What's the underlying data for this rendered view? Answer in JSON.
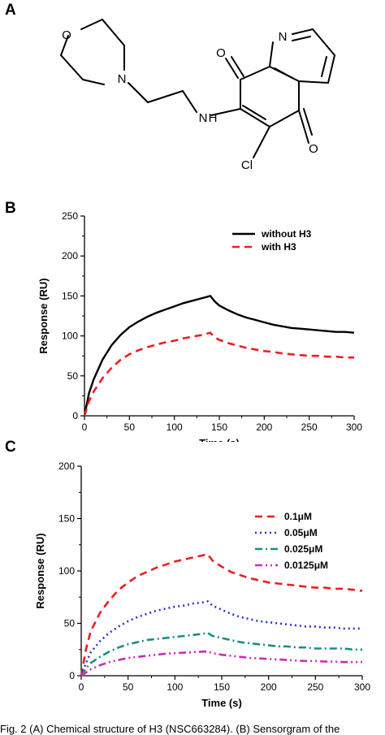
{
  "panels": {
    "a": "A",
    "b": "B",
    "c": "C"
  },
  "structure": {
    "atoms": {
      "O": "O",
      "N": "N",
      "NH": "N",
      "H": "H",
      "Cl": "Cl"
    }
  },
  "caption": "Fig. 2   (A) Chemical structure of H3 (NSC663284). (B) Sensorgram of the",
  "colors": {
    "black": "#000000",
    "red": "#e8211f",
    "blue": "#2a36c8",
    "teal": "#1a8f86",
    "magenta": "#cc2bb8"
  },
  "chart_data": [
    {
      "type": "line",
      "panel": "B",
      "xlabel": "Time (s)",
      "ylabel": "Response (RU)",
      "xlim": [
        0,
        300
      ],
      "ylim": [
        0,
        250
      ],
      "xticks": [
        0,
        50,
        100,
        150,
        200,
        250,
        300
      ],
      "yticks": [
        0,
        50,
        100,
        150,
        200,
        250
      ],
      "legend_position": "top-right",
      "series": [
        {
          "name": "without H3",
          "color": "#000000",
          "dash": "solid",
          "x": [
            0,
            5,
            10,
            20,
            30,
            40,
            50,
            60,
            70,
            80,
            90,
            100,
            110,
            120,
            130,
            140,
            145,
            150,
            160,
            170,
            180,
            190,
            200,
            210,
            220,
            230,
            240,
            250,
            260,
            270,
            280,
            290,
            300
          ],
          "y": [
            0,
            28,
            45,
            70,
            88,
            101,
            111,
            118,
            124,
            129,
            133,
            137,
            141,
            144,
            147,
            150,
            143,
            138,
            132,
            127,
            123,
            120,
            117,
            114,
            112,
            110,
            109,
            108,
            107,
            106,
            105,
            105,
            104
          ]
        },
        {
          "name": "with H3",
          "color": "#e8211f",
          "dash": "dash",
          "x": [
            0,
            5,
            10,
            20,
            30,
            40,
            50,
            60,
            70,
            80,
            90,
            100,
            110,
            120,
            130,
            140,
            145,
            150,
            160,
            170,
            180,
            190,
            200,
            210,
            220,
            230,
            240,
            250,
            260,
            270,
            280,
            290,
            300
          ],
          "y": [
            0,
            18,
            30,
            47,
            60,
            70,
            77,
            82,
            86,
            89,
            92,
            94,
            97,
            99,
            101,
            104,
            98,
            95,
            91,
            88,
            85,
            83,
            81,
            80,
            78,
            77,
            76,
            75,
            75,
            74,
            74,
            73,
            73
          ]
        }
      ]
    },
    {
      "type": "line",
      "panel": "C",
      "xlabel": "Time (s)",
      "ylabel": "Response (RU)",
      "xlim": [
        0,
        300
      ],
      "ylim": [
        0,
        200
      ],
      "xticks": [
        0,
        50,
        100,
        150,
        200,
        250,
        300
      ],
      "yticks": [
        0,
        50,
        100,
        150,
        200
      ],
      "legend_position": "top-right",
      "series": [
        {
          "name": "0.1μM",
          "color": "#e8211f",
          "dash": "dash",
          "x": [
            0,
            5,
            10,
            20,
            30,
            40,
            50,
            60,
            70,
            80,
            90,
            100,
            110,
            120,
            130,
            135,
            140,
            150,
            160,
            170,
            180,
            190,
            200,
            210,
            220,
            230,
            240,
            250,
            260,
            270,
            280,
            290,
            300
          ],
          "y": [
            0,
            25,
            42,
            60,
            72,
            82,
            89,
            95,
            99,
            103,
            106,
            109,
            111,
            113,
            115,
            116,
            110,
            104,
            99,
            96,
            93,
            91,
            89,
            88,
            87,
            86,
            85,
            84,
            84,
            83,
            83,
            82,
            81
          ]
        },
        {
          "name": "0.05μM",
          "color": "#2a36c8",
          "dash": "dot",
          "x": [
            0,
            5,
            10,
            20,
            30,
            40,
            50,
            60,
            70,
            80,
            90,
            100,
            110,
            120,
            130,
            135,
            140,
            150,
            160,
            170,
            180,
            190,
            200,
            210,
            220,
            230,
            240,
            250,
            260,
            270,
            280,
            290,
            300
          ],
          "y": [
            0,
            12,
            22,
            33,
            41,
            47,
            52,
            56,
            59,
            62,
            64,
            66,
            67,
            69,
            70,
            71,
            67,
            63,
            59,
            56,
            54,
            52,
            51,
            50,
            49,
            48,
            47,
            47,
            46,
            46,
            45,
            45,
            45
          ]
        },
        {
          "name": "0.025μM",
          "color": "#1a8f86",
          "dash": "dashdot",
          "x": [
            0,
            5,
            10,
            20,
            30,
            40,
            50,
            60,
            70,
            80,
            90,
            100,
            110,
            120,
            130,
            135,
            140,
            150,
            160,
            170,
            180,
            190,
            200,
            210,
            220,
            230,
            240,
            250,
            260,
            270,
            280,
            290,
            300
          ],
          "y": [
            0,
            7,
            12,
            18,
            23,
            27,
            30,
            32,
            34,
            35,
            36,
            37,
            38,
            39,
            40,
            41,
            38,
            36,
            34,
            32,
            31,
            30,
            29,
            28,
            28,
            27,
            27,
            26,
            26,
            26,
            26,
            25,
            25
          ]
        },
        {
          "name": "0.0125μM",
          "color": "#cc2bb8",
          "dash": "dashdotdot",
          "x": [
            0,
            5,
            10,
            20,
            30,
            40,
            50,
            60,
            70,
            80,
            90,
            100,
            110,
            120,
            130,
            135,
            140,
            150,
            160,
            170,
            180,
            190,
            200,
            210,
            220,
            230,
            240,
            250,
            260,
            270,
            280,
            290,
            300
          ],
          "y": [
            0,
            3,
            6,
            10,
            13,
            15,
            17,
            18,
            19,
            20,
            21,
            21.5,
            22,
            22.5,
            23,
            23,
            21.5,
            20,
            19,
            18,
            17,
            16.5,
            16,
            15.5,
            15,
            14.5,
            14,
            14,
            13.5,
            13.5,
            13,
            13,
            13
          ]
        }
      ]
    }
  ]
}
